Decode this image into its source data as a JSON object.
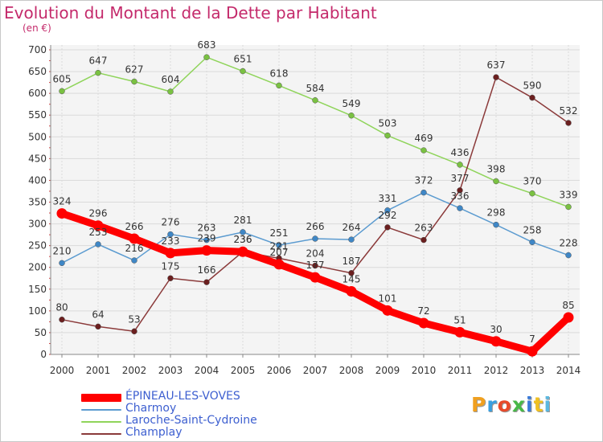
{
  "title": "Evolution du Montant de la Dette par Habitant",
  "unit": "(en €)",
  "logo": {
    "letters": [
      "P",
      "r",
      "o",
      "x",
      "i",
      "t",
      "i"
    ],
    "colors": [
      "#f0a020",
      "#3aa0e0",
      "#e84a2a",
      "#48b848",
      "#3a7ad8",
      "#f0c020",
      "#5bb8e0"
    ]
  },
  "chart_data": {
    "type": "line",
    "title": "Evolution du Montant de la Dette par Habitant",
    "ylabel": "(en €)",
    "x": [
      "2000",
      "2001",
      "2002",
      "2003",
      "2004",
      "2005",
      "2006",
      "2007",
      "2008",
      "2009",
      "2010",
      "2011",
      "2012",
      "2013",
      "2014"
    ],
    "ylim": [
      0,
      700
    ],
    "yticks": [
      0,
      50,
      100,
      150,
      200,
      250,
      300,
      350,
      400,
      450,
      500,
      550,
      600,
      650,
      700
    ],
    "grid": true,
    "legend_position": "bottom-left",
    "series": [
      {
        "name": "Laroche-Saint-Cydroine",
        "color": "#8fd45a",
        "marker": "#7ac142",
        "values": [
          605,
          647,
          627,
          604,
          683,
          651,
          618,
          584,
          549,
          503,
          469,
          436,
          398,
          370,
          339
        ]
      },
      {
        "name": "Charmoy",
        "color": "#5b9bd0",
        "marker": "#3f87c6",
        "values": [
          210,
          253,
          216,
          276,
          263,
          281,
          251,
          266,
          264,
          331,
          372,
          336,
          298,
          258,
          228
        ]
      },
      {
        "name": "Champlay",
        "color": "#8b3a3a",
        "marker": "#6b1f1f",
        "values": [
          80,
          64,
          53,
          175,
          166,
          236,
          221,
          204,
          187,
          292,
          263,
          377,
          637,
          590,
          532
        ]
      },
      {
        "name": "ÉPINEAU-LES-VOVES",
        "color": "#ff0000",
        "marker": "#ff0000",
        "values": [
          324,
          296,
          266,
          233,
          239,
          236,
          207,
          177,
          145,
          101,
          72,
          51,
          30,
          7,
          85
        ]
      }
    ],
    "legend_order": [
      "ÉPINEAU-LES-VOVES",
      "Charmoy",
      "Laroche-Saint-Cydroine",
      "Champlay"
    ]
  }
}
